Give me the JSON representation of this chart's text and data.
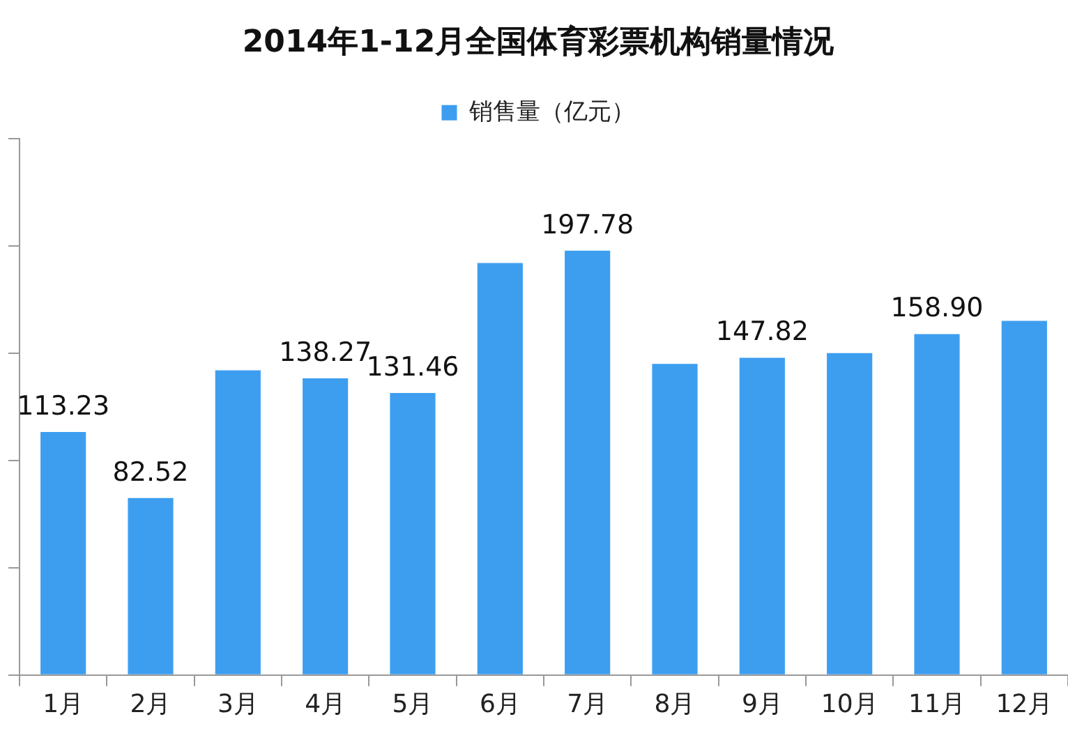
{
  "chart_data": {
    "type": "bar",
    "title": "2014年1-12月全国体育彩票机构销量情况",
    "categories": [
      "1月",
      "2月",
      "3月",
      "4月",
      "5月",
      "6月",
      "7月",
      "8月",
      "9月",
      "10月",
      "11月",
      "12月"
    ],
    "series": [
      {
        "name": "销售量（亿元）",
        "color": "#3d9ef0",
        "values": [
          113.23,
          82.52,
          142,
          138.27,
          131.46,
          192,
          197.78,
          145,
          147.82,
          150,
          158.9,
          165
        ],
        "value_labels": [
          "113.23",
          "82.52",
          null,
          "138.27",
          "131.46",
          null,
          "197.78",
          null,
          "147.82",
          null,
          "158.90",
          null
        ]
      }
    ],
    "ylim": [
      0,
      250
    ],
    "yticks": [
      {
        "value": 0,
        "label": null
      },
      {
        "value": 50,
        "label": null
      },
      {
        "value": 100,
        "label": null
      },
      {
        "value": 150,
        "label": null
      },
      {
        "value": 200,
        "label": null
      },
      {
        "value": 250,
        "label": null
      }
    ],
    "tick_labels": "x",
    "grid": false,
    "legend": "top"
  }
}
